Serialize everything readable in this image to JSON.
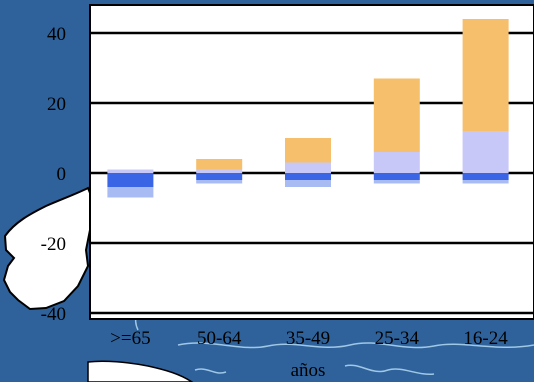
{
  "chart_data": {
    "type": "bar",
    "stacked": true,
    "categories": [
      ">=65",
      "50-64",
      "35-49",
      "25-34",
      "16-24"
    ],
    "xlabel": "años",
    "ylabel": "",
    "ylim": [
      -40,
      45
    ],
    "yticks": [
      40,
      20,
      0,
      -20,
      -40
    ],
    "grid": true,
    "series": [
      {
        "values": [
          1,
          1,
          3,
          6,
          12
        ],
        "color": "#c8c8f8"
      },
      {
        "values": [
          0,
          3,
          7,
          21,
          32
        ],
        "color": "#f5bf6b"
      },
      {
        "values": [
          -4,
          -2,
          -2,
          -2,
          -2
        ],
        "color": "#3a66e6"
      },
      {
        "values": [
          -3,
          -1,
          -2,
          -1,
          -1
        ],
        "color": "#a8bcf3"
      }
    ]
  },
  "colors": {
    "background": "#2f629b",
    "land": "#ffffff",
    "river": "#9fc7e6"
  }
}
